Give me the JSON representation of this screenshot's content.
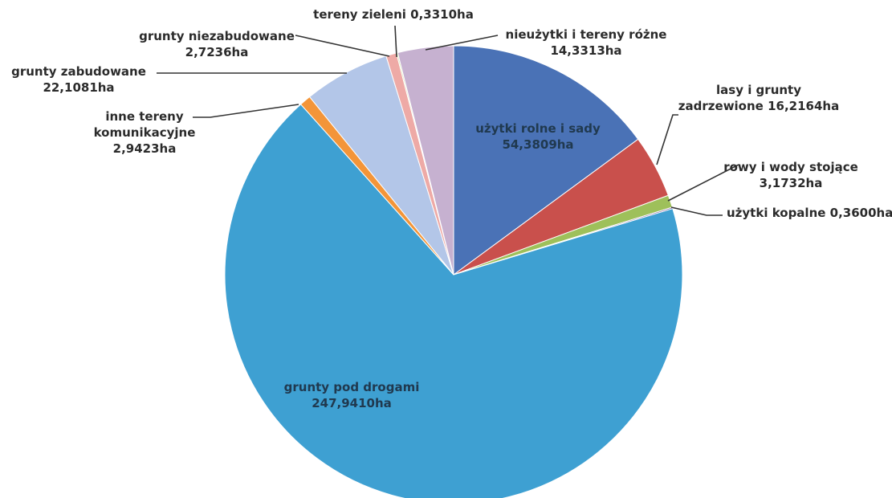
{
  "chart_data": {
    "type": "pie",
    "unit": "ha",
    "slices": [
      {
        "label_lines": [
          "użytki rolne i sady",
          "54,3809ha"
        ],
        "name": "użytki rolne i sady",
        "value": 54.3809,
        "color": "#4a72b6"
      },
      {
        "label_lines": [
          "lasy i grunty",
          "zadrzewione 16,2164ha"
        ],
        "name": "lasy i grunty zadrzewione",
        "value": 16.2164,
        "color": "#c9504c"
      },
      {
        "label_lines": [
          "rowy i wody stojące",
          "3,1732ha"
        ],
        "name": "rowy i wody stojące",
        "value": 3.1732,
        "color": "#9ec05a"
      },
      {
        "label_lines": [
          "użytki kopalne 0,3600ha"
        ],
        "name": "użytki kopalne",
        "value": 0.36,
        "color": "#7f63a2"
      },
      {
        "label_lines": [
          "grunty pod drogami",
          "247,9410ha"
        ],
        "name": "grunty pod drogami",
        "value": 247.941,
        "color": "#3ea0d2"
      },
      {
        "label_lines": [
          "inne tereny",
          "komunikacyjne",
          "2,9423ha"
        ],
        "name": "inne tereny komunikacyjne",
        "value": 2.9423,
        "color": "#f39539"
      },
      {
        "label_lines": [
          "grunty zabudowane",
          "22,1081ha"
        ],
        "name": "grunty zabudowane",
        "value": 22.1081,
        "color": "#b3c6e8"
      },
      {
        "label_lines": [
          "grunty niezabudowane",
          "2,7236ha"
        ],
        "name": "grunty niezabudowane",
        "value": 2.7236,
        "color": "#eeaaa6"
      },
      {
        "label_lines": [
          "tereny zieleni 0,3310ha"
        ],
        "name": "tereny zieleni",
        "value": 0.331,
        "color": "#cfe29d"
      },
      {
        "label_lines": [
          "nieużytki i tereny różne",
          "14,3313ha"
        ],
        "name": "nieużytki i tereny różne",
        "value": 14.3313,
        "color": "#c6b1d0"
      }
    ]
  }
}
